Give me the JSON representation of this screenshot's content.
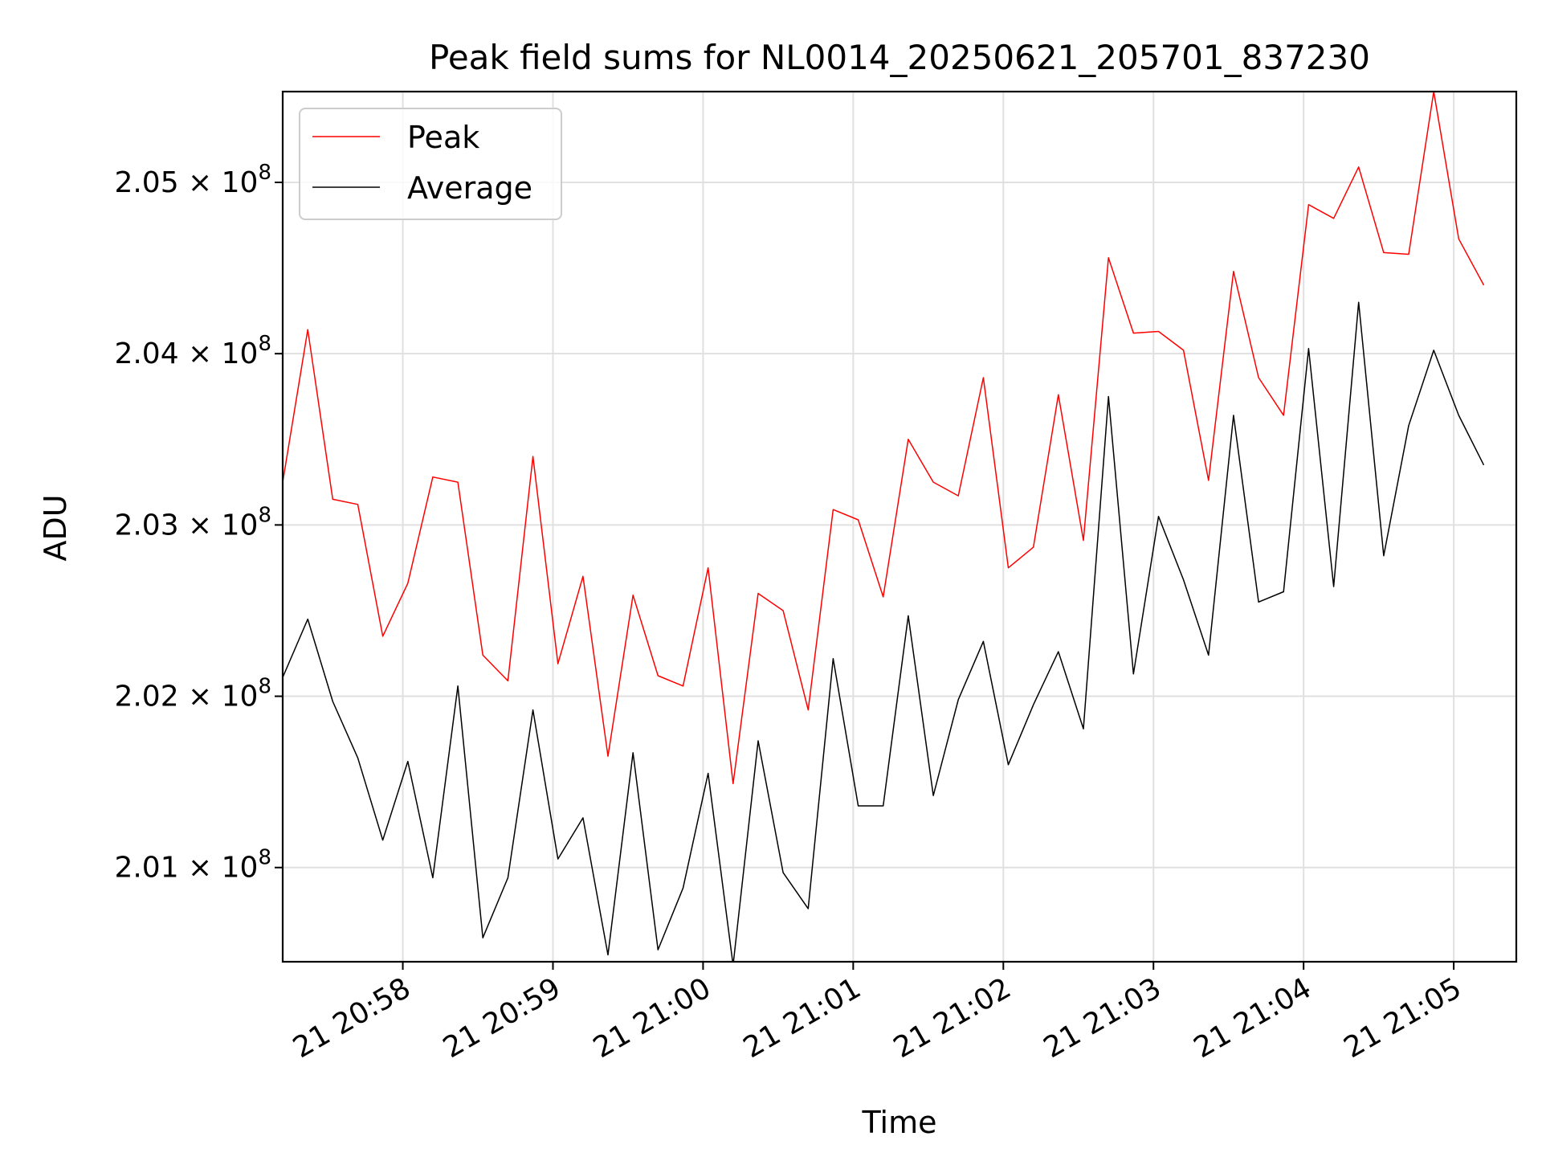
{
  "chart_data": {
    "type": "line",
    "title": "Peak field sums for NL0014_20250621_205701_837230",
    "xlabel": "Time",
    "ylabel": "ADU",
    "x_start": "2025-06-21 20:57:12",
    "x_step_seconds": 10,
    "xlim": [
      "2025-06-21 20:57:12",
      "2025-06-21 21:05:25"
    ],
    "ylim": [
      200450000,
      205530000
    ],
    "x_tick_labels": [
      "21 20:58",
      "21 20:59",
      "21 21:00",
      "21 21:01",
      "21 21:02",
      "21 21:03",
      "21 21:04",
      "21 21:05"
    ],
    "x_tick_values": [
      "2025-06-21 20:58:00",
      "2025-06-21 20:59:00",
      "2025-06-21 21:00:00",
      "2025-06-21 21:01:00",
      "2025-06-21 21:02:00",
      "2025-06-21 21:03:00",
      "2025-06-21 21:04:00",
      "2025-06-21 21:05:00"
    ],
    "y_tick_mantissas": [
      "2.01",
      "2.02",
      "2.03",
      "2.04",
      "2.05"
    ],
    "y_tick_values": [
      201000000,
      202000000,
      203000000,
      204000000,
      205000000
    ],
    "y_tick_exponent_base": "× 10",
    "y_tick_exponent": "8",
    "grid": true,
    "legend_position": "top-left",
    "series": [
      {
        "name": "Peak",
        "color": "#ff0000",
        "values": [
          203250000,
          204140000,
          203150000,
          203120000,
          202350000,
          202660000,
          203280000,
          203250000,
          202240000,
          202090000,
          203400000,
          202190000,
          202700000,
          201650000,
          202590000,
          202120000,
          202060000,
          202750000,
          201490000,
          202600000,
          202500000,
          201920000,
          203090000,
          203030000,
          202580000,
          203500000,
          203250000,
          203170000,
          203860000,
          202750000,
          202870000,
          203760000,
          202910000,
          204560000,
          204120000,
          204130000,
          204020000,
          203260000,
          204480000,
          203860000,
          203640000,
          204870000,
          204790000,
          205090000,
          204590000,
          204580000,
          205530000,
          204670000,
          204400000
        ]
      },
      {
        "name": "Average",
        "color": "#000000",
        "values": [
          202110000,
          202450000,
          201970000,
          201640000,
          201160000,
          201620000,
          200940000,
          202060000,
          200590000,
          200940000,
          201920000,
          201050000,
          201290000,
          200490000,
          201670000,
          200520000,
          200880000,
          201550000,
          200430000,
          201740000,
          200970000,
          200760000,
          202220000,
          201360000,
          201360000,
          202470000,
          201420000,
          201980000,
          202320000,
          201600000,
          201950000,
          202260000,
          201810000,
          203750000,
          202130000,
          203050000,
          202680000,
          202240000,
          203640000,
          202550000,
          202610000,
          204030000,
          202640000,
          204300000,
          202820000,
          203580000,
          204020000,
          203640000,
          203350000
        ]
      }
    ]
  }
}
